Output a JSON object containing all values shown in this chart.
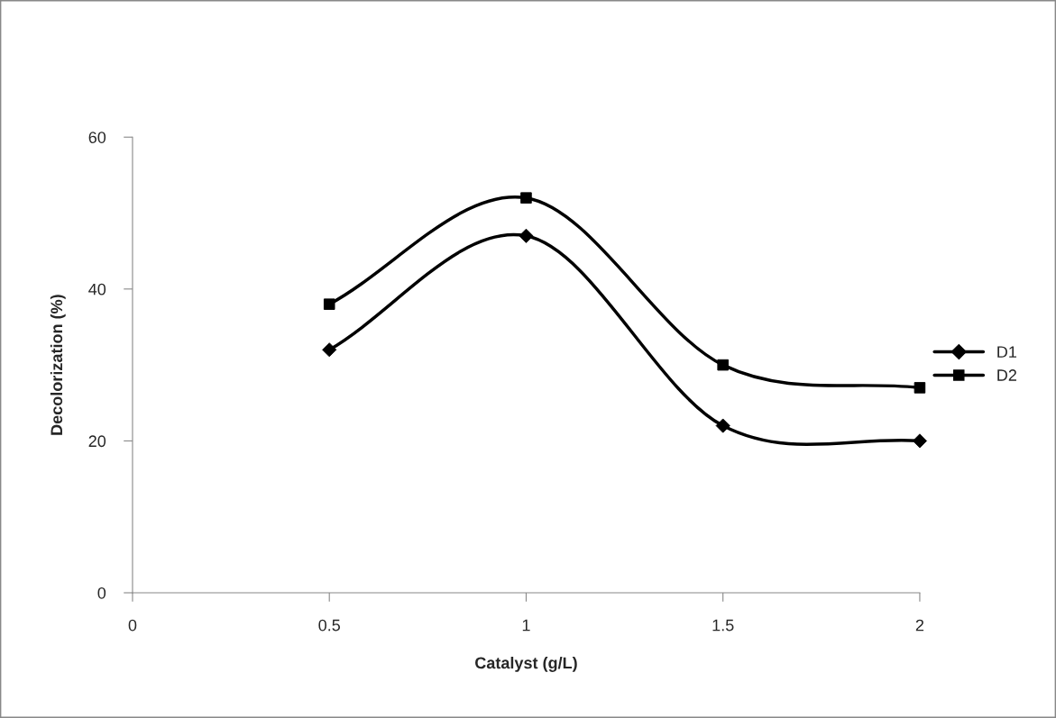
{
  "chart_data": {
    "type": "line",
    "xlabel": "Catalyst (g/L)",
    "ylabel": "Decolorization (%)",
    "x": [
      0.5,
      1,
      1.5,
      2
    ],
    "series": [
      {
        "name": "D1",
        "color": "#000000",
        "marker": "diamond",
        "values": [
          32,
          47,
          22,
          20
        ]
      },
      {
        "name": "D2",
        "color": "#000000",
        "marker": "square",
        "values": [
          38,
          52,
          30,
          27
        ]
      }
    ],
    "xlim": [
      0,
      2
    ],
    "xticks": [
      0,
      0.5,
      1,
      1.5,
      2
    ],
    "ylim": [
      0,
      60
    ],
    "yticks": [
      0,
      20,
      40,
      60
    ],
    "grid": false,
    "legend": "right",
    "line_style": "solid"
  }
}
